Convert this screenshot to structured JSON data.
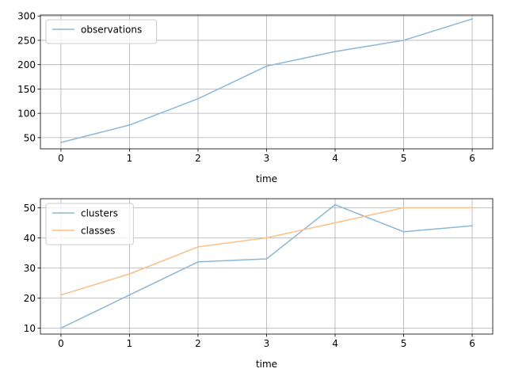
{
  "chart_data": [
    {
      "type": "line",
      "xlabel": "time",
      "ylabel": "",
      "x": [
        0,
        1,
        2,
        3,
        4,
        5,
        6
      ],
      "xlim": [
        -0.3,
        6.3
      ],
      "ylim": [
        27,
        302
      ],
      "xticks": [
        0,
        1,
        2,
        3,
        4,
        5,
        6
      ],
      "yticks": [
        50,
        100,
        150,
        200,
        250,
        300
      ],
      "grid": true,
      "legend_position": "top-left",
      "series": [
        {
          "name": "observations",
          "color": "#8bb7d9",
          "values": [
            40,
            76,
            130,
            197,
            227,
            250,
            294
          ]
        }
      ]
    },
    {
      "type": "line",
      "xlabel": "time",
      "ylabel": "",
      "x": [
        0,
        1,
        2,
        3,
        4,
        5,
        6
      ],
      "xlim": [
        -0.3,
        6.3
      ],
      "ylim": [
        8,
        53
      ],
      "xticks": [
        0,
        1,
        2,
        3,
        4,
        5,
        6
      ],
      "yticks": [
        10,
        20,
        30,
        40,
        50
      ],
      "grid": true,
      "legend_position": "top-left",
      "series": [
        {
          "name": "clusters",
          "color": "#8bb7d9",
          "values": [
            10,
            21,
            32,
            33,
            51,
            42,
            44
          ]
        },
        {
          "name": "classes",
          "color": "#ffbf86",
          "values": [
            21,
            28,
            37,
            40,
            45,
            50,
            50
          ]
        }
      ]
    }
  ]
}
